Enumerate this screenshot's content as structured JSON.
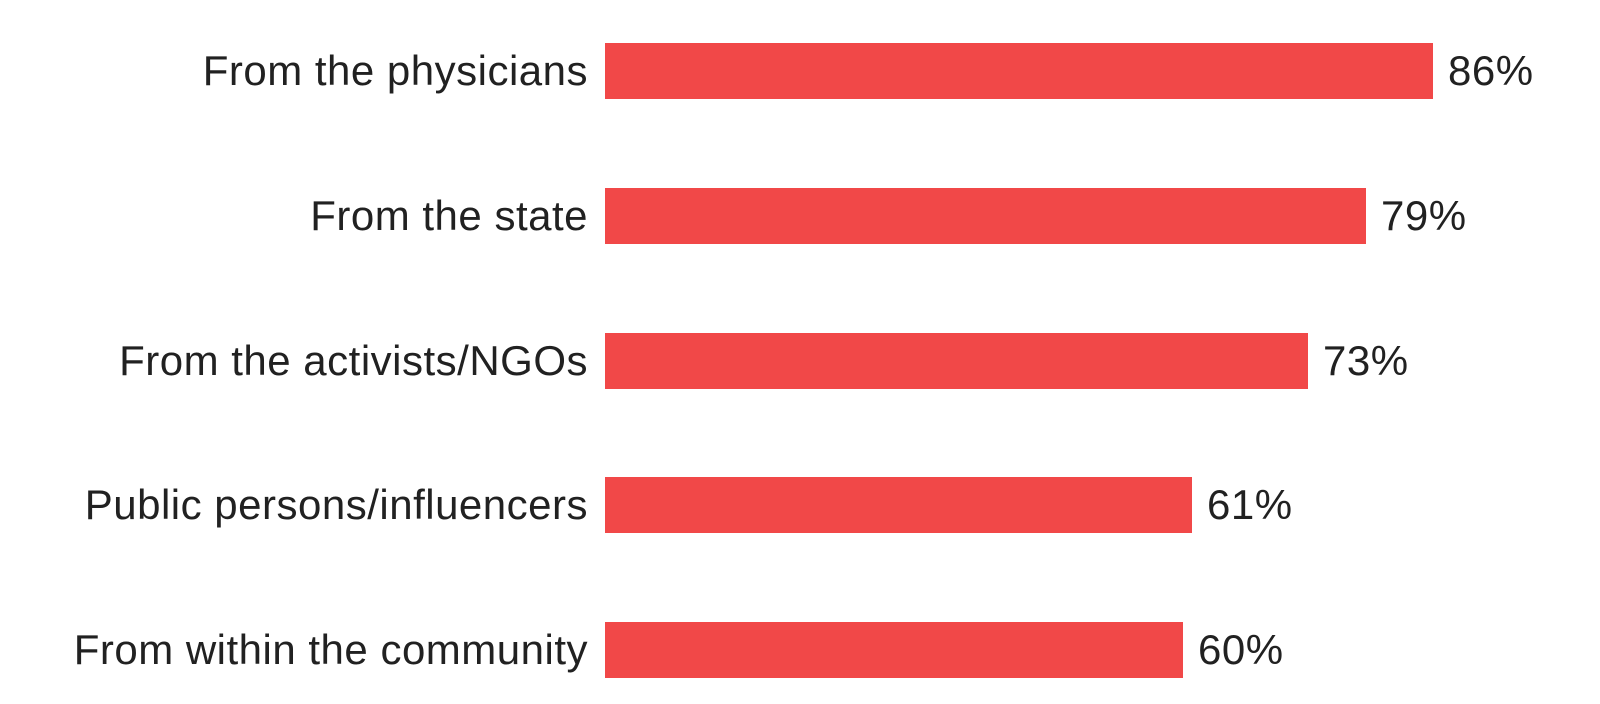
{
  "chart_data": {
    "type": "bar",
    "orientation": "horizontal",
    "title": "",
    "xlabel": "",
    "ylabel": "",
    "categories": [
      "From the physicians",
      "From the state",
      "From the activists/NGOs",
      "Public persons/influencers",
      "From within the community"
    ],
    "values": [
      86,
      79,
      73,
      61,
      60
    ],
    "value_labels": [
      "86%",
      "79%",
      "73%",
      "61%",
      "60%"
    ],
    "xlim": [
      0,
      100
    ],
    "grid": false,
    "legend": false,
    "bar_color": "#F14848",
    "text_color": "#212121",
    "background_color": "#FFFFFF"
  }
}
